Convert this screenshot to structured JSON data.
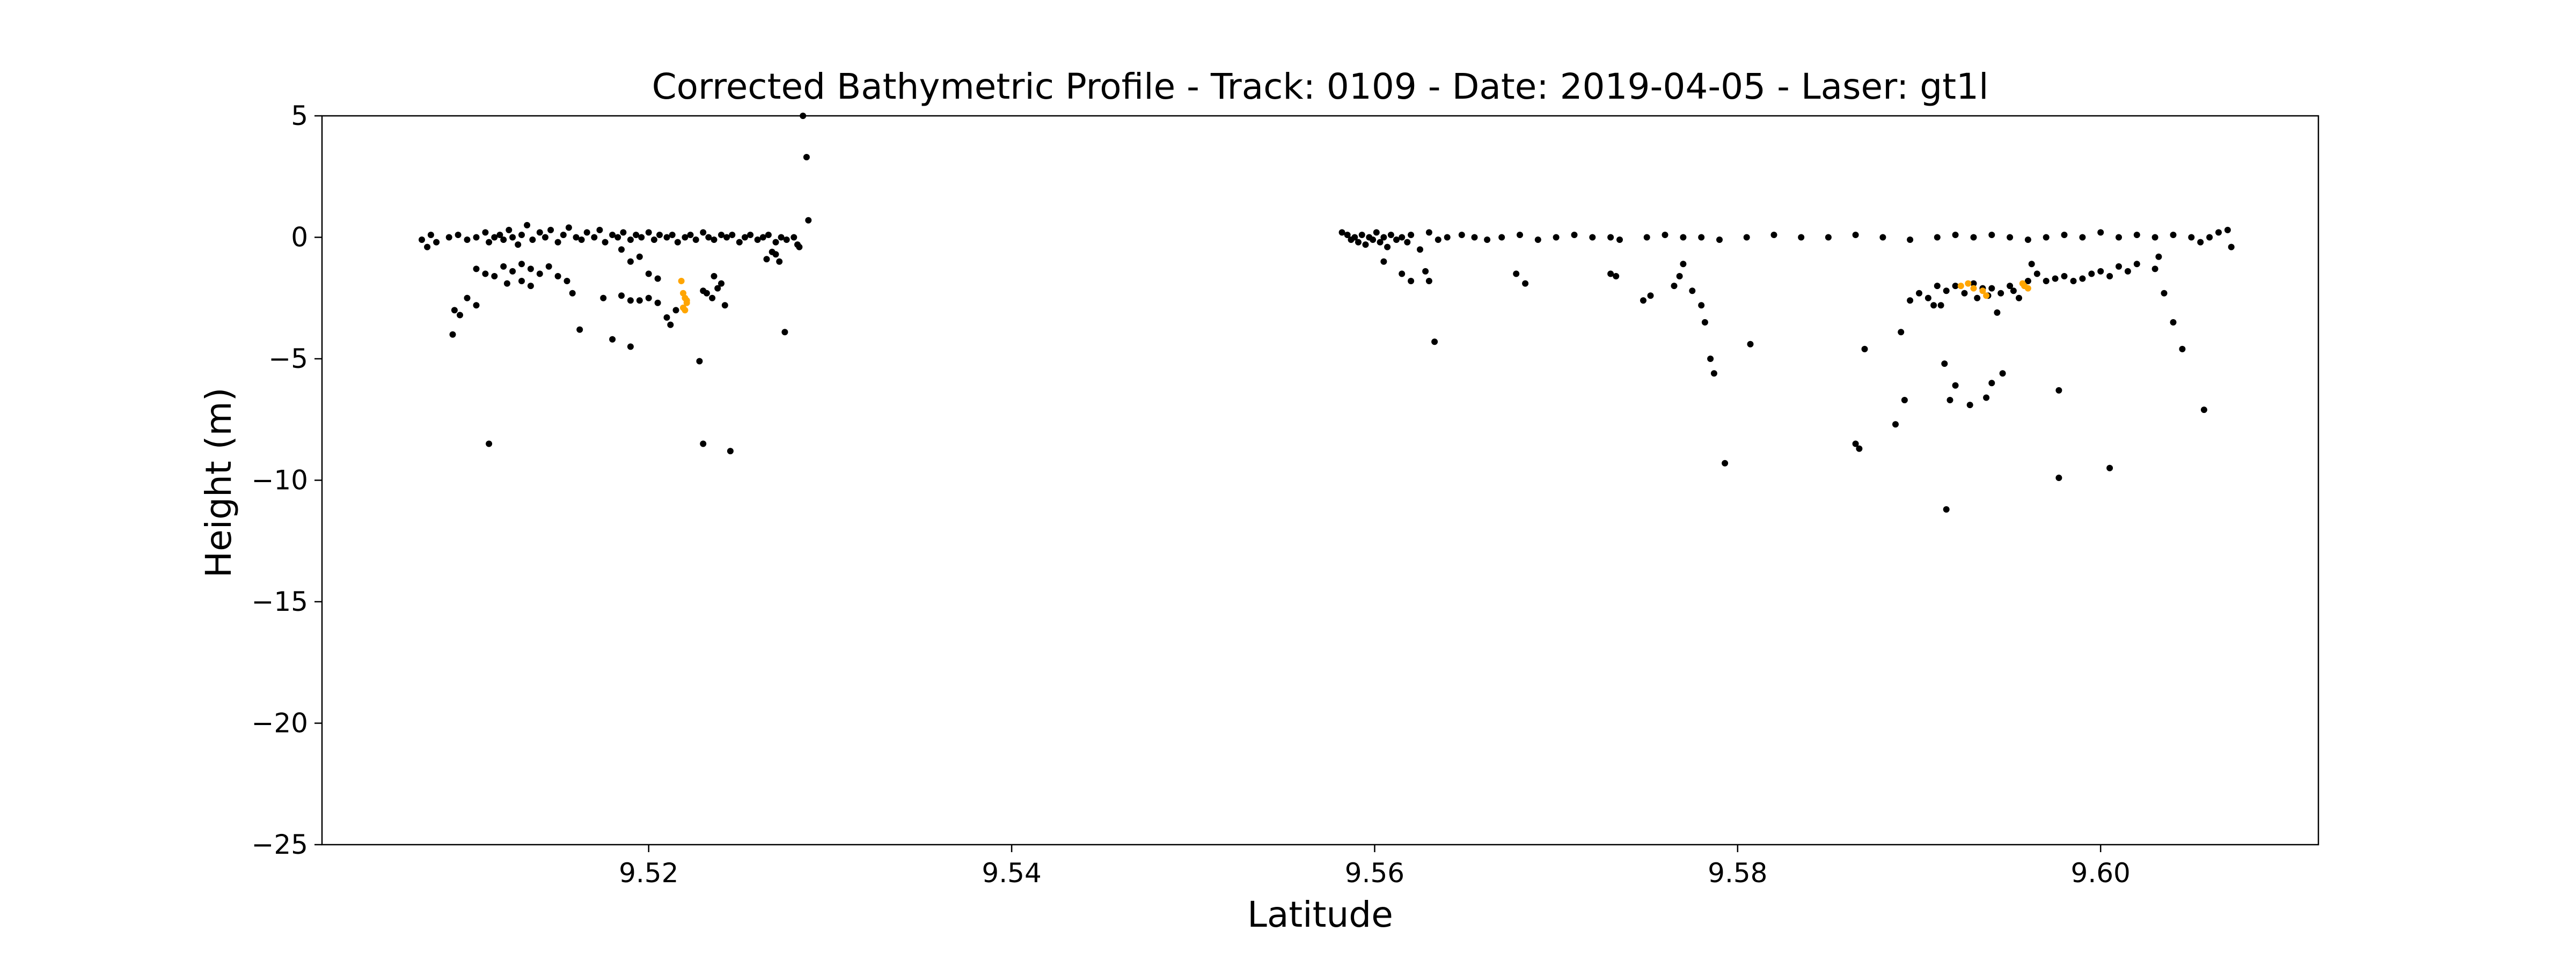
{
  "chart_data": {
    "type": "scatter",
    "title": "Corrected Bathymetric Profile - Track: 0109 - Date: 2019-04-05 - Laser: gt1l",
    "xlabel": "Latitude",
    "ylabel": "Height (m)",
    "xlim": [
      9.502,
      9.612
    ],
    "ylim": [
      -25,
      5
    ],
    "x_ticks": [
      9.52,
      9.54,
      9.56,
      9.58,
      9.6
    ],
    "x_tick_labels": [
      "9.52",
      "9.54",
      "9.56",
      "9.58",
      "9.60"
    ],
    "y_ticks": [
      5,
      0,
      -5,
      -10,
      -15,
      -20,
      -25
    ],
    "y_tick_labels": [
      "5",
      "0",
      "−5",
      "−10",
      "−15",
      "−20",
      "−25"
    ],
    "grid": false,
    "legend": "none",
    "colors": {
      "photons": "#000000",
      "bathymetry": "#ffa500"
    },
    "series": [
      {
        "role": "photons",
        "points": [
          [
            9.5075,
            -0.1
          ],
          [
            9.5078,
            -0.4
          ],
          [
            9.508,
            0.1
          ],
          [
            9.5083,
            -0.2
          ],
          [
            9.509,
            0.0
          ],
          [
            9.5095,
            0.1
          ],
          [
            9.51,
            -0.1
          ],
          [
            9.5105,
            0.0
          ],
          [
            9.511,
            0.2
          ],
          [
            9.5112,
            -0.2
          ],
          [
            9.5115,
            0.0
          ],
          [
            9.5118,
            0.1
          ],
          [
            9.512,
            -0.1
          ],
          [
            9.5123,
            0.3
          ],
          [
            9.5125,
            0.0
          ],
          [
            9.5128,
            -0.3
          ],
          [
            9.513,
            0.1
          ],
          [
            9.5133,
            0.5
          ],
          [
            9.5136,
            -0.1
          ],
          [
            9.514,
            0.2
          ],
          [
            9.5143,
            0.0
          ],
          [
            9.5146,
            0.3
          ],
          [
            9.515,
            -0.2
          ],
          [
            9.5153,
            0.1
          ],
          [
            9.5156,
            0.4
          ],
          [
            9.516,
            0.0
          ],
          [
            9.5163,
            -0.1
          ],
          [
            9.5166,
            0.2
          ],
          [
            9.517,
            0.0
          ],
          [
            9.5173,
            0.3
          ],
          [
            9.5176,
            -0.2
          ],
          [
            9.518,
            0.1
          ],
          [
            9.5183,
            0.0
          ],
          [
            9.5186,
            0.2
          ],
          [
            9.519,
            -0.1
          ],
          [
            9.5193,
            0.1
          ],
          [
            9.5196,
            0.0
          ],
          [
            9.52,
            0.2
          ],
          [
            9.5203,
            -0.1
          ],
          [
            9.5206,
            0.1
          ],
          [
            9.521,
            0.0
          ],
          [
            9.5213,
            0.1
          ],
          [
            9.5216,
            -0.2
          ],
          [
            9.522,
            0.0
          ],
          [
            9.5223,
            0.1
          ],
          [
            9.5226,
            -0.1
          ],
          [
            9.523,
            0.2
          ],
          [
            9.5233,
            0.0
          ],
          [
            9.5236,
            -0.1
          ],
          [
            9.524,
            0.1
          ],
          [
            9.5243,
            0.0
          ],
          [
            9.5246,
            0.1
          ],
          [
            9.525,
            -0.2
          ],
          [
            9.5253,
            0.0
          ],
          [
            9.5256,
            0.1
          ],
          [
            9.526,
            -0.1
          ],
          [
            9.5263,
            0.0
          ],
          [
            9.5266,
            0.1
          ],
          [
            9.527,
            -0.2
          ],
          [
            9.5273,
            0.0
          ],
          [
            9.5276,
            -0.1
          ],
          [
            9.528,
            0.0
          ],
          [
            9.5282,
            -0.3
          ],
          [
            9.5283,
            -0.4
          ],
          [
            9.5105,
            -1.3
          ],
          [
            9.511,
            -1.5
          ],
          [
            9.5115,
            -1.6
          ],
          [
            9.512,
            -1.2
          ],
          [
            9.5125,
            -1.4
          ],
          [
            9.513,
            -1.1
          ],
          [
            9.5135,
            -1.3
          ],
          [
            9.514,
            -1.5
          ],
          [
            9.5145,
            -1.2
          ],
          [
            9.515,
            -1.6
          ],
          [
            9.5155,
            -1.8
          ],
          [
            9.513,
            -1.8
          ],
          [
            9.5122,
            -1.9
          ],
          [
            9.5135,
            -2.0
          ],
          [
            9.51,
            -2.5
          ],
          [
            9.5105,
            -2.8
          ],
          [
            9.5096,
            -3.2
          ],
          [
            9.5093,
            -3.0
          ],
          [
            9.5092,
            -4.0
          ],
          [
            9.5112,
            -8.5
          ],
          [
            9.5158,
            -2.3
          ],
          [
            9.5162,
            -3.8
          ],
          [
            9.5175,
            -2.5
          ],
          [
            9.518,
            -4.2
          ],
          [
            9.5185,
            -2.4
          ],
          [
            9.519,
            -4.5
          ],
          [
            9.519,
            -2.6
          ],
          [
            9.5195,
            -2.6
          ],
          [
            9.52,
            -2.5
          ],
          [
            9.5205,
            -2.7
          ],
          [
            9.5185,
            -0.5
          ],
          [
            9.519,
            -1.0
          ],
          [
            9.5195,
            -0.8
          ],
          [
            9.52,
            -1.5
          ],
          [
            9.5205,
            -1.7
          ],
          [
            9.521,
            -3.3
          ],
          [
            9.5212,
            -3.6
          ],
          [
            9.5215,
            -3.0
          ],
          [
            9.523,
            -2.2
          ],
          [
            9.5232,
            -2.3
          ],
          [
            9.5235,
            -2.5
          ],
          [
            9.5238,
            -2.1
          ],
          [
            9.524,
            -1.9
          ],
          [
            9.5242,
            -2.8
          ],
          [
            9.5236,
            -1.6
          ],
          [
            9.5228,
            -5.1
          ],
          [
            9.523,
            -8.5
          ],
          [
            9.5245,
            -8.8
          ],
          [
            9.5265,
            -0.9
          ],
          [
            9.527,
            -0.7
          ],
          [
            9.5272,
            -1.0
          ],
          [
            9.5268,
            -0.6
          ],
          [
            9.5275,
            -3.9
          ],
          [
            9.5285,
            5.0
          ],
          [
            9.5287,
            3.3
          ],
          [
            9.5288,
            0.7
          ],
          [
            9.5582,
            0.2
          ],
          [
            9.5585,
            0.1
          ],
          [
            9.5587,
            -0.1
          ],
          [
            9.5589,
            0.0
          ],
          [
            9.5591,
            -0.2
          ],
          [
            9.5593,
            0.1
          ],
          [
            9.5595,
            -0.3
          ],
          [
            9.5597,
            0.0
          ],
          [
            9.5599,
            -0.1
          ],
          [
            9.5601,
            0.2
          ],
          [
            9.5603,
            -0.2
          ],
          [
            9.5605,
            0.0
          ],
          [
            9.5607,
            -0.4
          ],
          [
            9.5609,
            0.1
          ],
          [
            9.5612,
            -0.1
          ],
          [
            9.5615,
            0.0
          ],
          [
            9.5618,
            -0.2
          ],
          [
            9.562,
            0.1
          ],
          [
            9.5625,
            -0.5
          ],
          [
            9.563,
            0.2
          ],
          [
            9.5635,
            -0.1
          ],
          [
            9.564,
            0.0
          ],
          [
            9.5648,
            0.1
          ],
          [
            9.5655,
            0.0
          ],
          [
            9.5662,
            -0.1
          ],
          [
            9.567,
            0.0
          ],
          [
            9.568,
            0.1
          ],
          [
            9.569,
            -0.1
          ],
          [
            9.57,
            0.0
          ],
          [
            9.571,
            0.1
          ],
          [
            9.572,
            0.0
          ],
          [
            9.573,
            0.0
          ],
          [
            9.5735,
            -0.1
          ],
          [
            9.575,
            0.0
          ],
          [
            9.576,
            0.1
          ],
          [
            9.577,
            0.0
          ],
          [
            9.578,
            0.0
          ],
          [
            9.579,
            -0.1
          ],
          [
            9.5805,
            0.0
          ],
          [
            9.582,
            0.1
          ],
          [
            9.5835,
            0.0
          ],
          [
            9.585,
            0.0
          ],
          [
            9.5865,
            0.1
          ],
          [
            9.588,
            0.0
          ],
          [
            9.5895,
            -0.1
          ],
          [
            9.591,
            0.0
          ],
          [
            9.592,
            0.1
          ],
          [
            9.593,
            0.0
          ],
          [
            9.594,
            0.1
          ],
          [
            9.595,
            0.0
          ],
          [
            9.596,
            -0.1
          ],
          [
            9.597,
            0.0
          ],
          [
            9.598,
            0.1
          ],
          [
            9.599,
            0.0
          ],
          [
            9.6,
            0.2
          ],
          [
            9.601,
            0.0
          ],
          [
            9.602,
            0.1
          ],
          [
            9.603,
            0.0
          ],
          [
            9.604,
            0.1
          ],
          [
            9.605,
            0.0
          ],
          [
            9.6055,
            -0.2
          ],
          [
            9.606,
            0.0
          ],
          [
            9.6065,
            0.2
          ],
          [
            9.607,
            0.3
          ],
          [
            9.6072,
            -0.4
          ],
          [
            9.5605,
            -1.0
          ],
          [
            9.5615,
            -1.5
          ],
          [
            9.562,
            -1.8
          ],
          [
            9.5628,
            -1.4
          ],
          [
            9.563,
            -1.8
          ],
          [
            9.5633,
            -4.3
          ],
          [
            9.5678,
            -1.5
          ],
          [
            9.5683,
            -1.9
          ],
          [
            9.573,
            -1.5
          ],
          [
            9.5733,
            -1.6
          ],
          [
            9.5748,
            -2.6
          ],
          [
            9.5752,
            -2.4
          ],
          [
            9.5765,
            -2.0
          ],
          [
            9.5768,
            -1.6
          ],
          [
            9.577,
            -1.1
          ],
          [
            9.5775,
            -2.2
          ],
          [
            9.578,
            -2.8
          ],
          [
            9.5782,
            -3.5
          ],
          [
            9.5785,
            -5.0
          ],
          [
            9.5787,
            -5.6
          ],
          [
            9.5793,
            -9.3
          ],
          [
            9.5807,
            -4.4
          ],
          [
            9.5865,
            -8.5
          ],
          [
            9.5867,
            -8.7
          ],
          [
            9.587,
            -4.6
          ],
          [
            9.5887,
            -7.7
          ],
          [
            9.5892,
            -6.7
          ],
          [
            9.589,
            -3.9
          ],
          [
            9.5895,
            -2.6
          ],
          [
            9.59,
            -2.3
          ],
          [
            9.5905,
            -2.5
          ],
          [
            9.5908,
            -2.8
          ],
          [
            9.591,
            -2.0
          ],
          [
            9.5912,
            -2.8
          ],
          [
            9.5915,
            -2.2
          ],
          [
            9.592,
            -2.0
          ],
          [
            9.5925,
            -2.3
          ],
          [
            9.593,
            -1.9
          ],
          [
            9.5932,
            -2.5
          ],
          [
            9.5935,
            -2.1
          ],
          [
            9.5938,
            -2.4
          ],
          [
            9.594,
            -2.1
          ],
          [
            9.5945,
            -2.3
          ],
          [
            9.595,
            -2.0
          ],
          [
            9.5955,
            -2.5
          ],
          [
            9.596,
            -1.8
          ],
          [
            9.5965,
            -1.5
          ],
          [
            9.597,
            -1.8
          ],
          [
            9.5975,
            -1.7
          ],
          [
            9.598,
            -1.6
          ],
          [
            9.5985,
            -1.8
          ],
          [
            9.599,
            -1.7
          ],
          [
            9.5995,
            -1.5
          ],
          [
            9.6,
            -1.4
          ],
          [
            9.6005,
            -1.6
          ],
          [
            9.601,
            -1.2
          ],
          [
            9.6015,
            -1.4
          ],
          [
            9.602,
            -1.1
          ],
          [
            9.603,
            -1.3
          ],
          [
            9.6032,
            -0.8
          ],
          [
            9.6035,
            -2.3
          ],
          [
            9.604,
            -3.5
          ],
          [
            9.6045,
            -4.6
          ],
          [
            9.6057,
            -7.1
          ],
          [
            9.5914,
            -5.2
          ],
          [
            9.5917,
            -6.7
          ],
          [
            9.592,
            -6.1
          ],
          [
            9.5928,
            -6.9
          ],
          [
            9.5937,
            -6.6
          ],
          [
            9.594,
            -6.0
          ],
          [
            9.5946,
            -5.6
          ],
          [
            9.5915,
            -11.2
          ],
          [
            9.5977,
            -6.3
          ],
          [
            9.5977,
            -9.9
          ],
          [
            9.6005,
            -9.5
          ],
          [
            9.5943,
            -3.1
          ],
          [
            9.5952,
            -2.2
          ],
          [
            9.5962,
            -1.1
          ]
        ]
      },
      {
        "role": "bathymetry",
        "points": [
          [
            9.5218,
            -1.8
          ],
          [
            9.5219,
            -2.3
          ],
          [
            9.522,
            -2.5
          ],
          [
            9.5221,
            -2.7
          ],
          [
            9.5219,
            -2.9
          ],
          [
            9.522,
            -3.0
          ],
          [
            9.5221,
            -2.6
          ],
          [
            9.5923,
            -2.0
          ],
          [
            9.5927,
            -1.9
          ],
          [
            9.593,
            -2.1
          ],
          [
            9.5935,
            -2.2
          ],
          [
            9.5937,
            -2.4
          ],
          [
            9.5957,
            -1.9
          ],
          [
            9.596,
            -2.1
          ],
          [
            9.5958,
            -2.0
          ]
        ]
      }
    ]
  }
}
